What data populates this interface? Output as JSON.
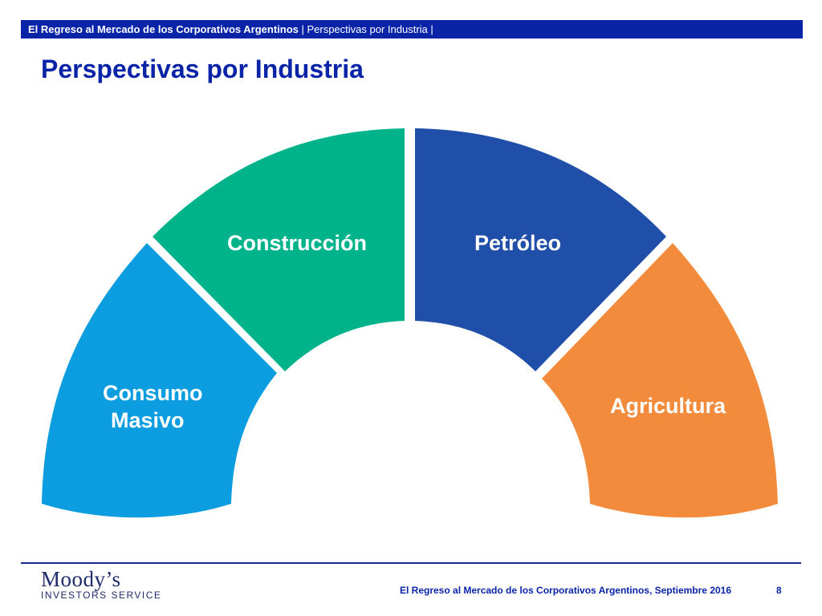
{
  "header": {
    "bold": "El Regreso al Mercado de los Corporativos Argentinos",
    "rest": " | Perspectivas por Industria |"
  },
  "title": "Perspectivas por Industria",
  "segments": [
    {
      "line1": "Consumo",
      "line2": "Masivo",
      "color": "#0b9de0"
    },
    {
      "line1": "Construcción",
      "color": "#00b38a"
    },
    {
      "line1": "Petróleo",
      "color": "#1f4fa8"
    },
    {
      "line1": "Agricultura",
      "color": "#f28c3c"
    }
  ],
  "footer": {
    "logo_main": "Moody’s",
    "logo_sub": "INVESTORS SERVICE",
    "text": "El Regreso al Mercado de los Corporativos Argentinos, Septiembre 2016",
    "page": "8"
  }
}
